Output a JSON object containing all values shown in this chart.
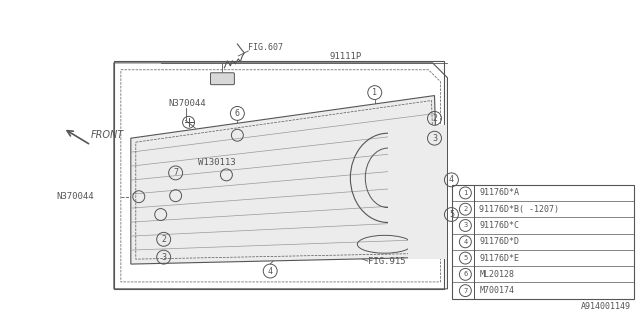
{
  "background_color": "#ffffff",
  "part_number_label": "A914001149",
  "legend_items": [
    {
      "num": "1",
      "part": "91176D*A"
    },
    {
      "num": "2",
      "part": "91176D*B( -1207)"
    },
    {
      "num": "3",
      "part": "91176D*C"
    },
    {
      "num": "4",
      "part": "91176D*D"
    },
    {
      "num": "5",
      "part": "91176D*E"
    },
    {
      "num": "6",
      "part": "ML20128"
    },
    {
      "num": "7",
      "part": "M700174"
    }
  ],
  "fig607": "FIG.607",
  "part91111p": "91111P",
  "n370044_top": "N370044",
  "w130113": "W130113",
  "n370044_bot": "N370044",
  "fig915": "FIG.915",
  "front": "FRONT",
  "gray": "#555555",
  "lgray": "#999999"
}
